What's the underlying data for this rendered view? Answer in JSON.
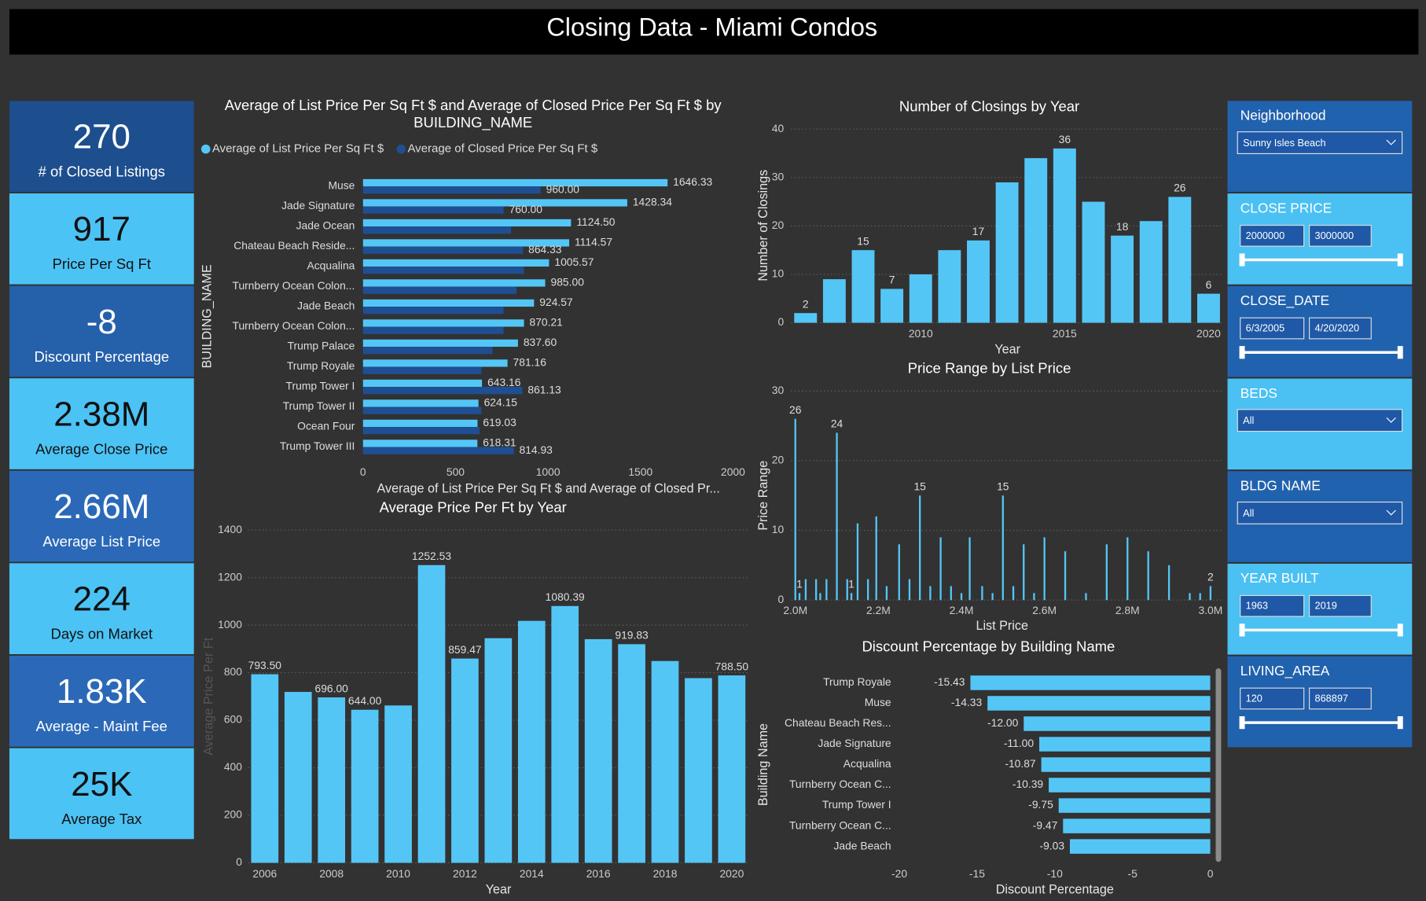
{
  "title": "Closing Data - Miami Condos",
  "kpis": [
    {
      "value": "270",
      "label": "# of Closed Listings"
    },
    {
      "value": "917",
      "label": "Price Per Sq Ft"
    },
    {
      "value": "-8",
      "label": "Discount Percentage"
    },
    {
      "value": "2.38M",
      "label": "Average Close Price"
    },
    {
      "value": "2.66M",
      "label": "Average List Price"
    },
    {
      "value": "224",
      "label": "Days on Market"
    },
    {
      "value": "1.83K",
      "label": "Average - Maint Fee"
    },
    {
      "value": "25K",
      "label": "Average Tax"
    }
  ],
  "slicers": [
    {
      "label": "Neighborhood",
      "selected": "Sunny Isles Beach"
    },
    {
      "label": "CLOSE PRICE",
      "range": [
        "2000000",
        "3000000"
      ]
    },
    {
      "label": "CLOSE_DATE",
      "range": [
        "6/3/2005",
        "4/20/2020"
      ]
    },
    {
      "label": "BEDS",
      "selected": "All"
    },
    {
      "label": "BLDG NAME",
      "selected": "All"
    },
    {
      "label": "YEAR BUILT",
      "range": [
        "1963",
        "2019"
      ]
    },
    {
      "label": "LIVING_AREA",
      "range": [
        "120",
        "868897"
      ]
    }
  ],
  "chart_data": [
    {
      "type": "barh",
      "title": "Average of List Price Per Sq Ft $ and Average of Closed Price Per Sq Ft $ by BUILDING_NAME",
      "xlabel": "Average of List Price Per Sq Ft $ and Average of Closed Pr...",
      "ylabel": "BUILDING_NAME",
      "legend": "top-left",
      "categories": [
        "Muse",
        "Jade Signature",
        "Jade Ocean",
        "Chateau Beach Reside...",
        "Acqualina",
        "Turnberry Ocean Colon...",
        "Jade Beach",
        "Turnberry Ocean Colon...",
        "Trump Palace",
        "Trump Royale",
        "Trump Tower I",
        "Trump Tower II",
        "Ocean Four",
        "Trump Tower III"
      ],
      "series": [
        {
          "name": "Average of List Price Per Sq Ft $",
          "color": "#54c6f6",
          "values": [
            1646.33,
            1428.34,
            1124.5,
            1114.57,
            1005.57,
            985,
            924.57,
            870.21,
            837.6,
            781.16,
            643.16,
            624.15,
            619.03,
            618.31
          ],
          "value_labels": [
            "1646.33",
            "1428.34",
            "1124.50",
            "1114.57",
            "1005.57",
            "985.00",
            "924.57",
            "870.21",
            "837.60",
            "781.16",
            "643.16",
            "624.15",
            "619.03",
            "618.31"
          ]
        },
        {
          "name": "Average of Closed Price Per Sq Ft $",
          "color": "#1f4f92",
          "values": [
            960,
            760,
            800,
            864.33,
            870,
            830,
            760,
            760,
            700,
            640,
            861.13,
            640,
            630,
            814.93
          ],
          "value_labels": [
            "960.00",
            "760.00",
            null,
            "864.33",
            null,
            null,
            null,
            null,
            null,
            null,
            "861.13",
            null,
            null,
            "814.93"
          ]
        }
      ],
      "xlim": [
        0,
        2000
      ],
      "xticks": [
        0,
        500,
        1000,
        1500,
        2000
      ],
      "grid": false
    },
    {
      "type": "bar",
      "title": "Number of Closings by Year",
      "xlabel": "Year",
      "ylabel": "Number of Closings",
      "color": "#54c6f6",
      "x": [
        2006,
        2007,
        2008,
        2009,
        2010,
        2011,
        2012,
        2013,
        2014,
        2015,
        2016,
        2017,
        2018,
        2019,
        2020
      ],
      "values": [
        2,
        9,
        15,
        7,
        10,
        15,
        17,
        29,
        34,
        36,
        25,
        18,
        21,
        26,
        6
      ],
      "value_labels": [
        "2",
        null,
        "15",
        "7",
        null,
        null,
        "17",
        null,
        null,
        "36",
        null,
        "18",
        null,
        "26",
        "6"
      ],
      "xlim": [
        2005.5,
        2020.5
      ],
      "xticks": [
        2010,
        2015,
        2020
      ],
      "ylim": [
        0,
        40
      ],
      "yticks": [
        0,
        10,
        20,
        30,
        40
      ],
      "grid": true
    },
    {
      "type": "bar",
      "title": "Price Range by List Price",
      "xlabel": "List Price",
      "ylabel": "Price Range",
      "color": "#54c6f6",
      "x": [
        2000000,
        2010000,
        2025000,
        2050000,
        2060000,
        2075000,
        2100000,
        2125000,
        2135000,
        2150000,
        2175000,
        2195000,
        2220000,
        2250000,
        2275000,
        2300000,
        2325000,
        2350000,
        2375000,
        2400000,
        2420000,
        2450000,
        2475000,
        2500000,
        2525000,
        2550000,
        2575000,
        2600000,
        2650000,
        2700000,
        2750000,
        2800000,
        2850000,
        2900000,
        2950000,
        2975000,
        3000000
      ],
      "values": [
        26,
        1,
        3,
        3,
        1,
        3,
        24,
        3,
        1,
        11,
        3,
        12,
        2,
        8,
        3,
        15,
        2,
        9,
        2,
        1,
        9,
        2,
        1,
        15,
        2,
        8,
        1,
        9,
        7,
        1,
        8,
        9,
        7,
        5,
        1,
        1,
        2
      ],
      "value_labels": [
        "26",
        "1",
        null,
        null,
        null,
        null,
        "24",
        null,
        "1",
        null,
        null,
        null,
        null,
        null,
        null,
        "15",
        null,
        null,
        null,
        null,
        null,
        null,
        null,
        "15",
        null,
        null,
        null,
        null,
        null,
        null,
        null,
        null,
        null,
        null,
        null,
        null,
        "2"
      ],
      "xlim": [
        1990000,
        3030000
      ],
      "xticks": [
        {
          "value": 2000000,
          "label": "2.0M"
        },
        {
          "value": 2200000,
          "label": "2.2M"
        },
        {
          "value": 2400000,
          "label": "2.4M"
        },
        {
          "value": 2600000,
          "label": "2.6M"
        },
        {
          "value": 2800000,
          "label": "2.8M"
        },
        {
          "value": 3000000,
          "label": "3.0M"
        }
      ],
      "ylim": [
        0,
        30
      ],
      "yticks": [
        0,
        10,
        20,
        30
      ],
      "grid": true
    },
    {
      "type": "bar",
      "title": "Average Price Per Ft by Year",
      "xlabel": "Year",
      "ylabel": "Average Price Per Ft",
      "color": "#54c6f6",
      "x": [
        2006,
        2007,
        2008,
        2009,
        2010,
        2011,
        2012,
        2013,
        2014,
        2015,
        2016,
        2017,
        2018,
        2019,
        2020
      ],
      "values": [
        793.5,
        719,
        696,
        644,
        662,
        1252.53,
        859.47,
        945,
        1018,
        1080.39,
        941,
        919.83,
        849,
        777,
        788.5
      ],
      "value_labels": [
        "793.50",
        null,
        "696.00",
        "644.00",
        null,
        "1252.53",
        "859.47",
        null,
        null,
        "1080.39",
        null,
        "919.83",
        null,
        null,
        "788.50"
      ],
      "xlim": [
        2005.5,
        2020.5
      ],
      "xticks": [
        2006,
        2008,
        2010,
        2012,
        2014,
        2016,
        2018,
        2020
      ],
      "ylim": [
        0,
        1400
      ],
      "yticks": [
        0,
        200,
        400,
        600,
        800,
        1000,
        1200,
        1400
      ],
      "grid": true
    },
    {
      "type": "barh",
      "title": "Discount Percentage by Building Name",
      "xlabel": "Discount Percentage",
      "ylabel": "Building Name",
      "color": "#54c6f6",
      "categories": [
        "Trump Royale",
        "Muse",
        "Chateau Beach Res...",
        "Jade Signature",
        "Acqualina",
        "Turnberry Ocean C...",
        "Trump Tower I",
        "Turnberry Ocean C...",
        "Jade Beach"
      ],
      "values": [
        -15.43,
        -14.33,
        -12,
        -11,
        -10.87,
        -10.39,
        -9.75,
        -9.47,
        -9.03
      ],
      "value_labels": [
        "-15.43",
        "-14.33",
        "-12.00",
        "-11.00",
        "-10.87",
        "-10.39",
        "-9.75",
        "-9.47",
        "-9.03"
      ],
      "xlim": [
        -20,
        0
      ],
      "xticks": [
        -20,
        -15,
        -10,
        -5,
        0
      ],
      "grid": false
    }
  ]
}
